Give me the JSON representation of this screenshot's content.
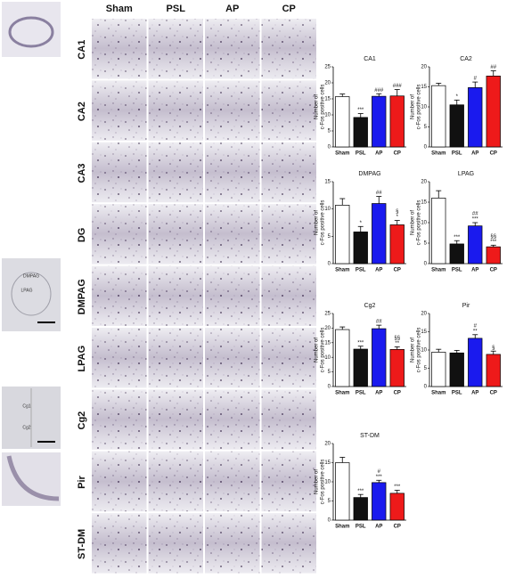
{
  "figure": {
    "columns": [
      "Sham",
      "PSL",
      "AP",
      "CP"
    ],
    "rows": [
      "CA1",
      "CA2",
      "CA3",
      "DG",
      "DMPAG",
      "LPAG",
      "Cg2",
      "Pir",
      "ST-DM"
    ],
    "insets": [
      [
        "DMPAG",
        "LPAG"
      ],
      [
        "Cg1",
        "Cg2"
      ]
    ]
  },
  "chart_data": [
    {
      "type": "bar",
      "title": "CA1",
      "ylabel": [
        "Number of",
        "c-Fos positive cells"
      ],
      "categories": [
        "Sham",
        "PSL",
        "AP",
        "CP"
      ],
      "values": [
        15.7,
        9.2,
        15.8,
        15.9
      ],
      "errors": [
        0.8,
        1.2,
        0.8,
        2.0
      ],
      "colors": [
        "#ffffff",
        "#111111",
        "#1a1aee",
        "#ee1a1a"
      ],
      "annotations": [
        [],
        [
          "***"
        ],
        [
          "###"
        ],
        [
          "###"
        ]
      ],
      "ylim": [
        0,
        25
      ],
      "yticks": [
        0,
        5,
        10,
        15,
        20,
        25
      ]
    },
    {
      "type": "bar",
      "title": "CA2",
      "ylabel": [
        "Number of",
        "c-Fos positive cells"
      ],
      "categories": [
        "Sham",
        "PSL",
        "AP",
        "CP"
      ],
      "values": [
        15.3,
        10.5,
        14.8,
        17.7
      ],
      "errors": [
        0.6,
        1.2,
        1.4,
        1.3
      ],
      "colors": [
        "#ffffff",
        "#111111",
        "#1a1aee",
        "#ee1a1a"
      ],
      "annotations": [
        [],
        [
          "*"
        ],
        [
          "#"
        ],
        [
          "##"
        ]
      ],
      "ylim": [
        0,
        20
      ],
      "yticks": [
        0,
        5,
        10,
        15,
        20
      ]
    },
    {
      "type": "bar",
      "title": "DMPAG",
      "ylabel": [
        "Number of",
        "c-Fos positive cells"
      ],
      "categories": [
        "Sham",
        "PSL",
        "AP",
        "CP"
      ],
      "values": [
        10.7,
        5.8,
        11.0,
        7.1
      ],
      "errors": [
        1.2,
        1.0,
        1.3,
        0.8
      ],
      "colors": [
        "#ffffff",
        "#111111",
        "#1a1aee",
        "#ee1a1a"
      ],
      "annotations": [
        [],
        [
          "*"
        ],
        [
          "##"
        ],
        [
          "§",
          "*"
        ]
      ],
      "ylim": [
        0,
        15
      ],
      "yticks": [
        0,
        5,
        10,
        15
      ]
    },
    {
      "type": "bar",
      "title": "LPAG",
      "ylabel": [
        "Number of",
        "c-Fos positive cells"
      ],
      "categories": [
        "Sham",
        "PSL",
        "AP",
        "CP"
      ],
      "values": [
        16.0,
        4.8,
        9.2,
        4.1
      ],
      "errors": [
        1.8,
        0.8,
        0.8,
        0.4
      ],
      "colors": [
        "#ffffff",
        "#111111",
        "#1a1aee",
        "#ee1a1a"
      ],
      "annotations": [
        [],
        [
          "***"
        ],
        [
          "##",
          "***"
        ],
        [
          "§§",
          "***"
        ]
      ],
      "ylim": [
        0,
        20
      ],
      "yticks": [
        0,
        5,
        10,
        15,
        20
      ]
    },
    {
      "type": "bar",
      "title": "Cg2",
      "ylabel": [
        "Number of",
        "c-Fos positive cells"
      ],
      "categories": [
        "Sham",
        "PSL",
        "AP",
        "CP"
      ],
      "values": [
        19.5,
        12.8,
        19.8,
        12.7
      ],
      "errors": [
        0.9,
        1.0,
        1.2,
        0.9
      ],
      "colors": [
        "#ffffff",
        "#111111",
        "#1a1aee",
        "#ee1a1a"
      ],
      "annotations": [
        [],
        [
          "***"
        ],
        [
          "##"
        ],
        [
          "§§",
          "**"
        ]
      ],
      "ylim": [
        0,
        25
      ],
      "yticks": [
        0,
        5,
        10,
        15,
        20,
        25
      ]
    },
    {
      "type": "bar",
      "title": "Pir",
      "ylabel": [
        "Number of",
        "c-Fos positive cells"
      ],
      "categories": [
        "Sham",
        "PSL",
        "AP",
        "CP"
      ],
      "values": [
        9.4,
        9.2,
        13.2,
        8.8
      ],
      "errors": [
        0.8,
        0.7,
        1.0,
        0.9
      ],
      "colors": [
        "#ffffff",
        "#111111",
        "#1a1aee",
        "#ee1a1a"
      ],
      "annotations": [
        [],
        [],
        [
          "#",
          "**"
        ],
        [
          "§"
        ]
      ],
      "ylim": [
        0,
        20
      ],
      "yticks": [
        0,
        5,
        10,
        15,
        20
      ]
    },
    {
      "type": "bar",
      "title": "ST-DM",
      "ylabel": [
        "Number of",
        "c-Fos positive cells"
      ],
      "categories": [
        "Sham",
        "PSL",
        "AP",
        "CP"
      ],
      "values": [
        15.0,
        5.9,
        9.8,
        7.0
      ],
      "errors": [
        1.4,
        0.8,
        0.6,
        0.8
      ],
      "colors": [
        "#ffffff",
        "#111111",
        "#1a1aee",
        "#ee1a1a"
      ],
      "annotations": [
        [],
        [
          "***"
        ],
        [
          "#",
          "***"
        ],
        [
          "***"
        ]
      ],
      "ylim": [
        0,
        20
      ],
      "yticks": [
        0,
        5,
        10,
        15,
        20
      ]
    }
  ]
}
